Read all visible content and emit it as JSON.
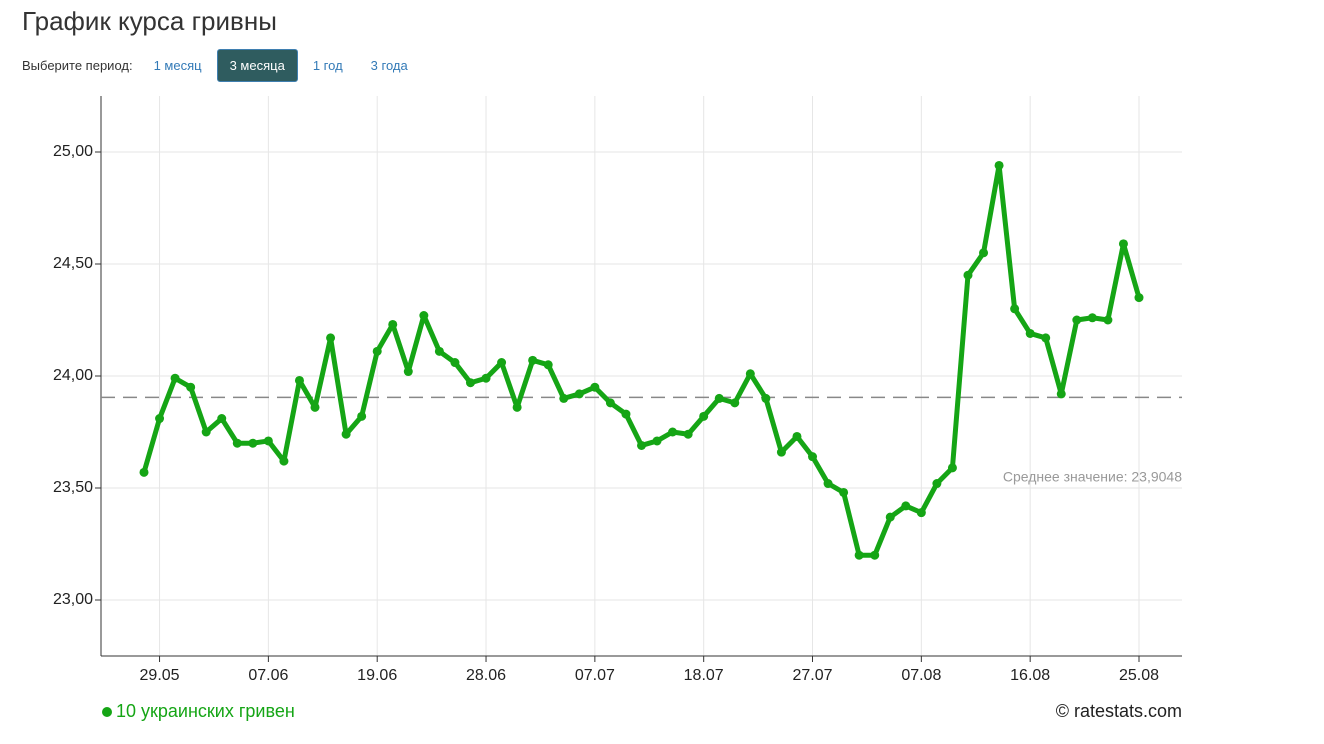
{
  "header": {
    "title": "График курса гривны"
  },
  "period_selector": {
    "label": "Выберите период:",
    "options": [
      "1 месяц",
      "3 месяца",
      "1 год",
      "3 года"
    ],
    "active": 1
  },
  "chart_data": {
    "type": "line",
    "categories": [
      null,
      "29.05",
      null,
      null,
      null,
      null,
      null,
      null,
      "07.06",
      null,
      null,
      null,
      null,
      null,
      null,
      "19.06",
      null,
      null,
      null,
      null,
      null,
      null,
      "28.06",
      null,
      null,
      null,
      null,
      null,
      null,
      "07.07",
      null,
      null,
      null,
      null,
      null,
      null,
      "18.07",
      null,
      null,
      null,
      null,
      null,
      null,
      "27.07",
      null,
      null,
      null,
      null,
      null,
      null,
      "07.08",
      null,
      null,
      null,
      null,
      null,
      null,
      "16.08",
      null,
      null,
      null,
      null,
      null,
      null,
      "25.08"
    ],
    "series": [
      {
        "name": "10 украинских гривен",
        "color": "#15a515",
        "values": [
          23.57,
          23.81,
          23.99,
          23.95,
          23.75,
          23.81,
          23.7,
          23.7,
          23.71,
          23.62,
          23.98,
          23.86,
          24.17,
          23.74,
          23.82,
          24.11,
          24.23,
          24.02,
          24.27,
          24.11,
          24.06,
          23.97,
          23.99,
          24.06,
          23.86,
          24.07,
          24.05,
          23.9,
          23.92,
          23.95,
          23.88,
          23.83,
          23.69,
          23.71,
          23.75,
          23.74,
          23.82,
          23.9,
          23.88,
          24.01,
          23.9,
          23.66,
          23.73,
          23.64,
          23.52,
          23.48,
          23.2,
          23.2,
          23.37,
          23.42,
          23.39,
          23.52,
          23.59,
          24.45,
          24.55,
          24.94,
          24.3,
          24.19,
          24.17,
          23.92,
          24.25,
          24.26,
          24.25,
          24.59,
          24.35
        ]
      }
    ],
    "ylim": [
      22.75,
      25.25
    ],
    "yticks": [
      {
        "value": 23,
        "label": "23,00"
      },
      {
        "value": 23.5,
        "label": "23,50"
      },
      {
        "value": 24,
        "label": "24,00"
      },
      {
        "value": 24.5,
        "label": "24,50"
      },
      {
        "value": 25,
        "label": "25,00"
      }
    ],
    "grid": true,
    "mean": 23.9048,
    "mean_label": "Среднее значение: 23,9048"
  },
  "footer": {
    "credit": "© ratestats.com"
  }
}
